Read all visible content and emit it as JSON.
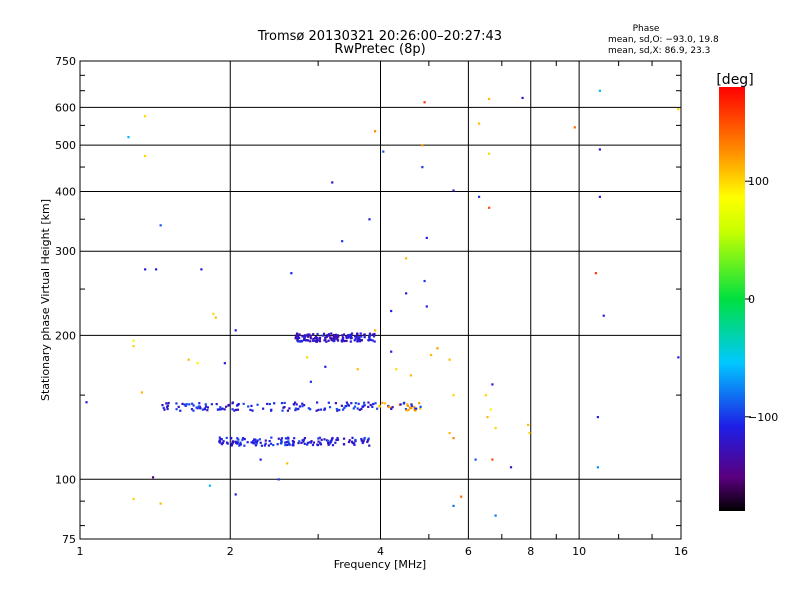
{
  "chart_data": {
    "type": "scatter",
    "title": "Tromsø 20130321 20:26:00–20:27:43",
    "subtitle": "RwPretec (8p)",
    "xlabel": "Frequency [MHz]",
    "ylabel": "Stationary phase Virtual Height [km]",
    "x_scale": "log",
    "y_scale": "log",
    "xlim": [
      1,
      16
    ],
    "ylim": [
      75,
      750
    ],
    "x_ticks": [
      "1",
      "2",
      "4",
      "6",
      "8",
      "10",
      "16"
    ],
    "x_tick_values": [
      1,
      2,
      4,
      6,
      8,
      10,
      16
    ],
    "y_ticks": [
      "75",
      "100",
      "200",
      "300",
      "400",
      "500",
      "600",
      "750"
    ],
    "y_tick_values": [
      75,
      100,
      200,
      300,
      400,
      500,
      600,
      750
    ],
    "grid": true,
    "phase_info": {
      "heading": "Phase",
      "line_o": "mean, sd,O: −93.0, 19.8",
      "line_x": "mean, sd,X:  86.9, 23.3"
    },
    "colorbar": {
      "label": "[deg]",
      "ticks": [
        "100",
        "0",
        "−100"
      ],
      "tick_values": [
        100,
        0,
        -100
      ],
      "range": [
        -180,
        180
      ]
    },
    "traces": [
      {
        "name": "F-trace lower",
        "x_start": 1.9,
        "x_end": 3.8,
        "y": 120,
        "phase": -110
      },
      {
        "name": "F-trace middle",
        "x_start": 1.45,
        "x_end": 4.9,
        "y": 142,
        "phase": -110
      },
      {
        "name": "F-trace upper",
        "x_start": 2.7,
        "x_end": 3.9,
        "y": 198,
        "phase": -120
      }
    ],
    "points": [
      [
        1.03,
        145,
        -110
      ],
      [
        1.25,
        520,
        -60
      ],
      [
        1.35,
        575,
        100
      ],
      [
        1.35,
        475,
        100
      ],
      [
        1.45,
        340,
        -90
      ],
      [
        1.35,
        275,
        -110
      ],
      [
        1.42,
        275,
        -110
      ],
      [
        1.75,
        275,
        -110
      ],
      [
        1.28,
        195,
        80
      ],
      [
        1.28,
        190,
        100
      ],
      [
        1.33,
        152,
        110
      ],
      [
        1.4,
        101,
        -150
      ],
      [
        1.28,
        91,
        100
      ],
      [
        1.45,
        89,
        110
      ],
      [
        1.82,
        97,
        -60
      ],
      [
        2.05,
        93,
        -110
      ],
      [
        1.85,
        222,
        100
      ],
      [
        1.87,
        218,
        110
      ],
      [
        2.05,
        205,
        -110
      ],
      [
        1.65,
        178,
        110
      ],
      [
        1.72,
        175,
        90
      ],
      [
        1.95,
        175,
        -110
      ],
      [
        2.65,
        270,
        -110
      ],
      [
        3.2,
        418,
        -120
      ],
      [
        3.35,
        315,
        -100
      ],
      [
        3.9,
        535,
        130
      ],
      [
        4.05,
        485,
        -90
      ],
      [
        4.9,
        615,
        160
      ],
      [
        4.85,
        500,
        120
      ],
      [
        4.85,
        450,
        -100
      ],
      [
        4.95,
        320,
        -110
      ],
      [
        4.9,
        260,
        -100
      ],
      [
        4.95,
        230,
        -110
      ],
      [
        5.6,
        402,
        -130
      ],
      [
        6.3,
        555,
        110
      ],
      [
        6.3,
        390,
        -100
      ],
      [
        6.6,
        625,
        110
      ],
      [
        6.6,
        480,
        100
      ],
      [
        6.6,
        370,
        150
      ],
      [
        7.7,
        628,
        -120
      ],
      [
        9.8,
        545,
        140
      ],
      [
        11.0,
        650,
        -60
      ],
      [
        11.0,
        490,
        -120
      ],
      [
        11.0,
        390,
        -120
      ],
      [
        10.8,
        270,
        160
      ],
      [
        11.2,
        220,
        -110
      ],
      [
        10.9,
        135,
        -110
      ],
      [
        10.9,
        106,
        -70
      ],
      [
        15.8,
        595,
        100
      ],
      [
        15.8,
        180,
        -110
      ],
      [
        6.2,
        110,
        -90
      ],
      [
        6.7,
        110,
        150
      ],
      [
        7.3,
        106,
        -120
      ],
      [
        6.8,
        84,
        -80
      ],
      [
        5.6,
        88,
        -80
      ],
      [
        5.8,
        92,
        140
      ],
      [
        7.9,
        130,
        110
      ],
      [
        7.95,
        125,
        100
      ],
      [
        6.7,
        158,
        -110
      ],
      [
        6.5,
        150,
        100
      ],
      [
        6.65,
        140,
        90
      ],
      [
        6.55,
        135,
        110
      ],
      [
        6.8,
        128,
        100
      ],
      [
        4.3,
        170,
        100
      ],
      [
        4.6,
        165,
        110
      ],
      [
        4.2,
        185,
        -110
      ],
      [
        5.05,
        182,
        110
      ],
      [
        5.2,
        188,
        120
      ],
      [
        5.5,
        178,
        110
      ],
      [
        5.6,
        150,
        100
      ],
      [
        5.5,
        125,
        110
      ],
      [
        5.6,
        122,
        130
      ],
      [
        2.85,
        180,
        100
      ],
      [
        3.1,
        172,
        -110
      ],
      [
        2.9,
        160,
        -100
      ],
      [
        3.6,
        170,
        110
      ],
      [
        2.6,
        108,
        110
      ],
      [
        2.3,
        110,
        -110
      ],
      [
        2.5,
        100,
        -100
      ],
      [
        4.2,
        225,
        -110
      ],
      [
        4.5,
        245,
        -110
      ],
      [
        3.9,
        205,
        110
      ],
      [
        3.8,
        350,
        -110
      ],
      [
        4.5,
        290,
        110
      ]
    ]
  }
}
